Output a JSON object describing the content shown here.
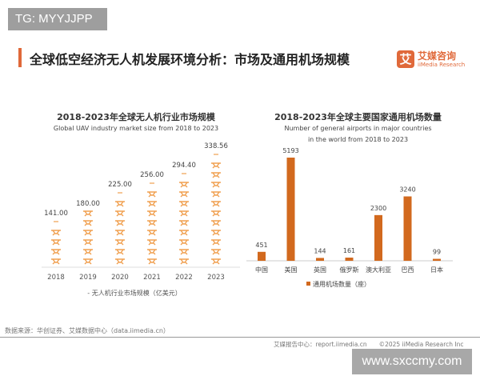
{
  "watermark_top": "TG: MYYJJPP",
  "title": "全球低空经济无人机发展环境分析：市场及通用机场规模",
  "logo": {
    "mark": "艾",
    "cn": "艾媒咨询",
    "en": "iiMedia Research"
  },
  "accent_color": "#e0693a",
  "chart_data": [
    {
      "type": "bar",
      "style": "pictograph",
      "icon": "drone-icon",
      "title": "2018-2023年全球无人机行业市场规模",
      "subtitle": "Global UAV industry market size from 2018 to 2023",
      "categories": [
        "2018",
        "2019",
        "2020",
        "2021",
        "2022",
        "2023"
      ],
      "series": [
        {
          "name": "无人机行业市场规模（亿美元）",
          "values": [
            141.0,
            180.0,
            225.0,
            256.0,
            294.4,
            338.56
          ]
        }
      ],
      "data_labels": [
        "141.00",
        "180.00",
        "225.00",
        "256.00",
        "294.40",
        "338.56"
      ],
      "legend": "bottom",
      "color": "#f0a050"
    },
    {
      "type": "bar",
      "title": "2018-2023年全球主要国家通用机场数量",
      "subtitle": [
        "Number of general airports in major countries",
        "in the world from 2018 to 2023"
      ],
      "categories": [
        "中国",
        "美国",
        "英国",
        "俄罗斯",
        "澳大利亚",
        "巴西",
        "日本"
      ],
      "series": [
        {
          "name": "通用机场数量（座）",
          "values": [
            451,
            5193,
            144,
            161,
            2300,
            3240,
            99
          ]
        }
      ],
      "legend": "bottom",
      "color": "#d2691e"
    }
  ],
  "source": "数据来源：华创证券、艾媒数据中心（data.iimedia.cn）",
  "footer": "艾媒报告中心：report.iimedia.cn　　©2025  iiMedia Research Inc",
  "watermark_bottom": "www.sxccmy.com"
}
